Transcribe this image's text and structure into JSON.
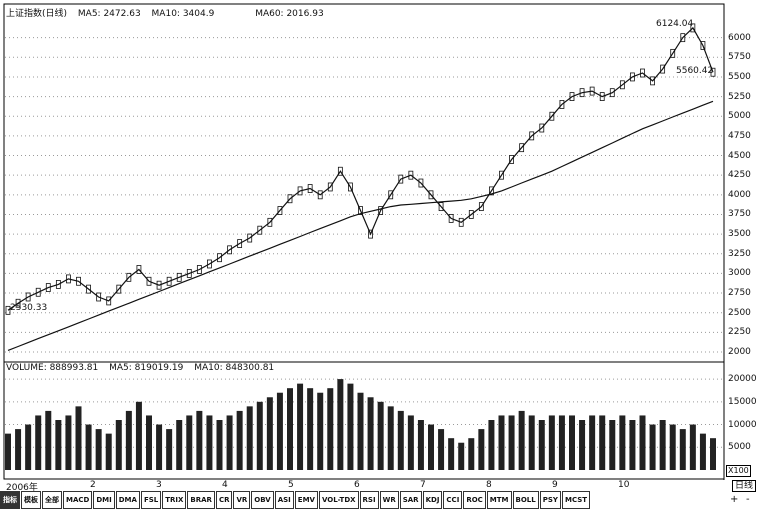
{
  "header": {
    "title": "上证指数(日线)",
    "ma5": "MA5: 2472.63",
    "ma10": "MA10: 3404.9",
    "ma60": "MA60: 2016.93"
  },
  "volume_header": {
    "title": "VOLUME: 888993.81",
    "ma5": "MA5: 819019.19",
    "ma10": "MA10: 848300.81"
  },
  "annotations": {
    "high": "6124.04",
    "mid": "5560.42",
    "low": "2530.33"
  },
  "axis": {
    "year": "2006年",
    "months": [
      "2",
      "3",
      "4",
      "5",
      "6",
      "7",
      "8",
      "9",
      "10"
    ],
    "price_ticks": [
      "6000",
      "5750",
      "5500",
      "5250",
      "5000",
      "4750",
      "4500",
      "4250",
      "4000",
      "3750",
      "3500",
      "3250",
      "3000",
      "2750",
      "2500",
      "2250",
      "2000"
    ],
    "volume_ticks": [
      "20000",
      "15000",
      "10000",
      "5000"
    ],
    "volume_unit": "X100"
  },
  "side": {
    "period": "日线",
    "plus": "+",
    "minus": "-"
  },
  "tabs": [
    "指标",
    "模板",
    "全部",
    "MACD",
    "DMI",
    "DMA",
    "FSL",
    "TRIX",
    "BRAR",
    "CR",
    "VR",
    "OBV",
    "ASI",
    "EMV",
    "VOL-TDX",
    "RSI",
    "WR",
    "SAR",
    "KDJ",
    "CCI",
    "ROC",
    "MTM",
    "BOLL",
    "PSY",
    "MCST"
  ],
  "colors": {
    "line": "#111111",
    "grid": "#9a9a9a",
    "background": "#ffffff"
  },
  "chart_data": {
    "type": "line",
    "price_series": {
      "name": "上证指数",
      "values": [
        2530,
        2620,
        2700,
        2760,
        2820,
        2860,
        2930,
        2900,
        2800,
        2700,
        2650,
        2800,
        2950,
        3050,
        2900,
        2850,
        2900,
        2950,
        3000,
        3050,
        3120,
        3200,
        3300,
        3380,
        3450,
        3550,
        3650,
        3800,
        3950,
        4050,
        4080,
        4000,
        4100,
        4300,
        4100,
        3800,
        3500,
        3800,
        4000,
        4200,
        4250,
        4150,
        4000,
        3850,
        3700,
        3650,
        3750,
        3850,
        4050,
        4250,
        4450,
        4600,
        4750,
        4850,
        5000,
        5150,
        5250,
        5300,
        5320,
        5250,
        5300,
        5400,
        5500,
        5550,
        5450,
        5600,
        5800,
        6000,
        6124,
        5900,
        5560
      ]
    },
    "ma_long": {
      "name": "MA60",
      "values": [
        2020,
        2070,
        2120,
        2170,
        2220,
        2270,
        2320,
        2370,
        2420,
        2470,
        2520,
        2570,
        2620,
        2670,
        2720,
        2770,
        2820,
        2870,
        2920,
        2970,
        3020,
        3070,
        3120,
        3170,
        3220,
        3270,
        3320,
        3370,
        3420,
        3470,
        3520,
        3570,
        3620,
        3670,
        3720,
        3760,
        3790,
        3820,
        3850,
        3870,
        3880,
        3890,
        3900,
        3910,
        3920,
        3930,
        3950,
        3980,
        4010,
        4050,
        4100,
        4150,
        4200,
        4250,
        4300,
        4360,
        4420,
        4480,
        4540,
        4600,
        4660,
        4720,
        4780,
        4840,
        4890,
        4940,
        4990,
        5040,
        5090,
        5140,
        5190
      ]
    },
    "volume": [
      8,
      9,
      10,
      12,
      13,
      11,
      12,
      14,
      10,
      9,
      8,
      11,
      13,
      15,
      12,
      10,
      9,
      11,
      12,
      13,
      12,
      11,
      12,
      13,
      14,
      15,
      16,
      17,
      18,
      19,
      18,
      17,
      18,
      20,
      19,
      17,
      16,
      15,
      14,
      13,
      12,
      11,
      10,
      9,
      7,
      6,
      7,
      9,
      11,
      12,
      12,
      13,
      12,
      11,
      12,
      12,
      12,
      11,
      12,
      12,
      11,
      12,
      11,
      12,
      10,
      11,
      10,
      9,
      10,
      8,
      7
    ],
    "ylim_price": [
      2000,
      6250
    ],
    "ylim_volume": [
      0,
      22000
    ]
  }
}
